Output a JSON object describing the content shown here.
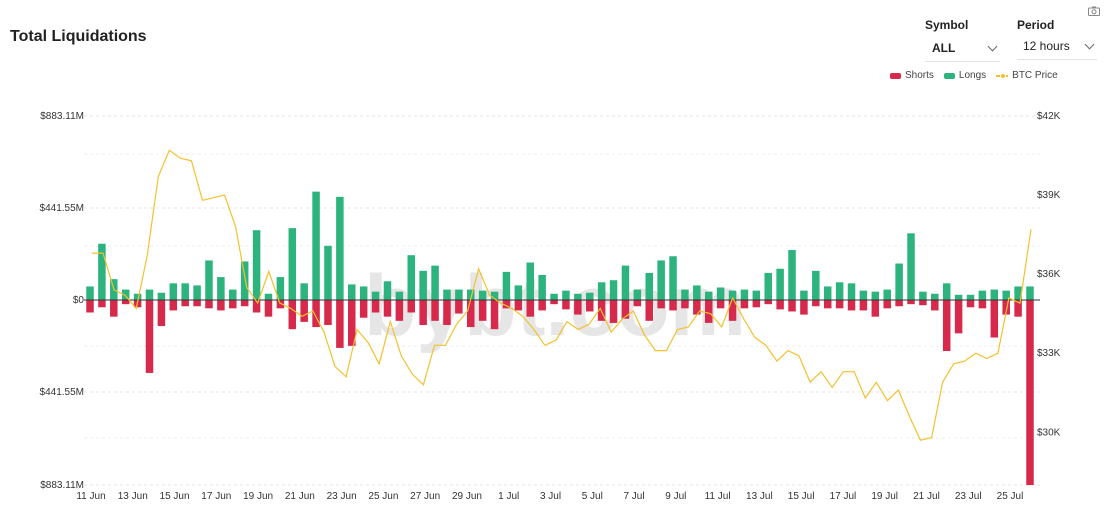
{
  "title": "Total Liquidations",
  "controls": {
    "symbol_label": "Symbol",
    "symbol_value": "ALL",
    "period_label": "Period",
    "period_value": "12 hours"
  },
  "watermark": "bybt.com",
  "legend": [
    {
      "name": "Shorts",
      "color": "#d6294b"
    },
    {
      "name": "Longs",
      "color": "#2db37e"
    },
    {
      "name": "BTC Price",
      "color": "#f2c12e"
    }
  ],
  "chart_data": {
    "type": "bar",
    "x_tick_labels": [
      "11 Jun",
      "13 Jun",
      "15 Jun",
      "17 Jun",
      "19 Jun",
      "21 Jun",
      "23 Jun",
      "25 Jun",
      "27 Jun",
      "29 Jun",
      "1 Jul",
      "3 Jul",
      "5 Jul",
      "7 Jul",
      "9 Jul",
      "11 Jul",
      "13 Jul",
      "15 Jul",
      "17 Jul",
      "19 Jul",
      "21 Jul",
      "23 Jul",
      "25 Jul"
    ],
    "y_left_ticks": [
      "$883.11M",
      "$441.55M",
      "$0",
      "$441.55M",
      "$883.11M"
    ],
    "y_left_range": [
      -883.11,
      883.11
    ],
    "y_right_ticks": [
      "$42K",
      "$39K",
      "$36K",
      "$33K",
      "$30K"
    ],
    "y_right_range": [
      28000,
      42000
    ],
    "grid": true,
    "legend_position": "top-right",
    "series": [
      {
        "name": "Longs",
        "values": [
          65,
          270,
          100,
          50,
          30,
          50,
          35,
          80,
          80,
          70,
          190,
          110,
          50,
          185,
          335,
          30,
          110,
          345,
          80,
          520,
          260,
          495,
          75,
          65,
          40,
          90,
          40,
          215,
          140,
          165,
          50,
          50,
          50,
          45,
          40,
          135,
          70,
          180,
          120,
          30,
          45,
          30,
          35,
          85,
          95,
          165,
          50,
          130,
          190,
          210,
          50,
          70,
          40,
          60,
          45,
          50,
          45,
          130,
          150,
          240,
          45,
          140,
          65,
          85,
          80,
          45,
          40,
          50,
          175,
          320,
          40,
          30,
          80,
          25,
          25,
          45,
          50,
          45,
          65,
          65
        ]
      },
      {
        "name": "Shorts",
        "values": [
          60,
          35,
          80,
          20,
          35,
          350,
          125,
          50,
          30,
          30,
          40,
          50,
          40,
          30,
          60,
          80,
          40,
          140,
          105,
          130,
          120,
          230,
          220,
          85,
          60,
          80,
          100,
          60,
          120,
          100,
          120,
          65,
          130,
          100,
          140,
          40,
          50,
          80,
          50,
          20,
          45,
          70,
          55,
          100,
          110,
          90,
          30,
          100,
          40,
          50,
          40,
          70,
          110,
          40,
          100,
          40,
          35,
          20,
          45,
          55,
          70,
          30,
          40,
          40,
          50,
          50,
          80,
          40,
          30,
          20,
          25,
          50,
          245,
          160,
          35,
          40,
          180,
          70,
          80,
          1050
        ]
      },
      {
        "name": "BTC Price",
        "values": [
          36800,
          36800,
          35400,
          35200,
          34700,
          36700,
          39700,
          40700,
          40400,
          40300,
          38800,
          38900,
          39000,
          37800,
          35500,
          34900,
          36100,
          34900,
          34700,
          34400,
          34600,
          33800,
          32500,
          32100,
          33900,
          33400,
          32600,
          34200,
          32900,
          32200,
          31800,
          33300,
          33300,
          34100,
          34600,
          36200,
          35200,
          34900,
          34700,
          34400,
          33900,
          33300,
          33500,
          34200,
          33900,
          34100,
          34700,
          33800,
          34300,
          34600,
          33700,
          33100,
          33100,
          33900,
          34000,
          34600,
          34500,
          34000,
          35100,
          34300,
          33600,
          33300,
          32700,
          33100,
          32900,
          31900,
          32300,
          31700,
          32300,
          32300,
          31300,
          31900,
          31200,
          31600,
          30600,
          29700,
          29800,
          31900,
          32600,
          32700,
          33000,
          32800,
          33000,
          35100,
          34900,
          37700
        ]
      }
    ]
  }
}
